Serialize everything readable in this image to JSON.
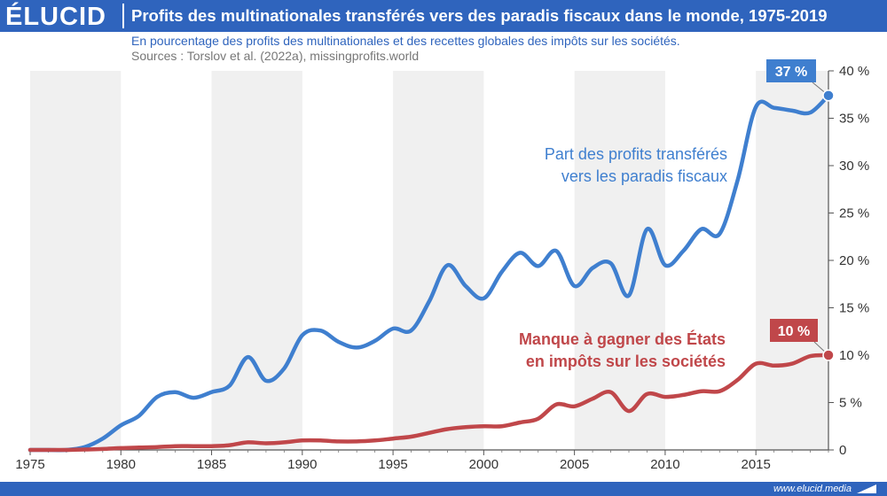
{
  "header": {
    "logo": "ÉLUCID",
    "title": "Profits des multinationales transférés vers des paradis fiscaux dans le monde, 1975-2019"
  },
  "subtitle": "En pourcentage des profits des multinationales et des recettes globales des impôts sur les sociétés.",
  "source": "Sources : Torslov et al. (2022a), missingprofits.world",
  "footer": {
    "url": "www.elucid.media"
  },
  "colors": {
    "brand": "#2f64bd",
    "series_blue": "#3f7fcf",
    "series_red": "#c0474a",
    "band": "#f0f0f0"
  },
  "chart_data": {
    "type": "line",
    "xlim": [
      1975,
      2019
    ],
    "ylim": [
      0,
      40
    ],
    "x_ticks": [
      1975,
      1980,
      1985,
      1990,
      1995,
      2000,
      2005,
      2010,
      2015
    ],
    "x_tick_labels": [
      "1975",
      "1980",
      "1985",
      "1990",
      "1995",
      "2000",
      "2005",
      "2010",
      "2015"
    ],
    "y_ticks": [
      0,
      5,
      10,
      15,
      20,
      25,
      30,
      35,
      40
    ],
    "y_tick_labels": [
      "0",
      "5 %",
      "10 %",
      "15 %",
      "20 %",
      "25 %",
      "30 %",
      "35 %",
      "40 %"
    ],
    "y_axis_side": "right",
    "grid": false,
    "alternating_year_bands": true,
    "series": [
      {
        "name": "Part des profits transférés vers les paradis fiscaux",
        "label_lines": [
          "Part des profits transférés",
          "vers les paradis fiscaux"
        ],
        "color": "#3f7fcf",
        "end_label": "37 %",
        "x": [
          1975,
          1976,
          1977,
          1978,
          1979,
          1980,
          1981,
          1982,
          1983,
          1984,
          1985,
          1986,
          1987,
          1988,
          1989,
          1990,
          1991,
          1992,
          1993,
          1994,
          1995,
          1996,
          1997,
          1998,
          1999,
          2000,
          2001,
          2002,
          2003,
          2004,
          2005,
          2006,
          2007,
          2008,
          2009,
          2010,
          2011,
          2012,
          2013,
          2014,
          2015,
          2016,
          2017,
          2018,
          2019
        ],
        "values": [
          0,
          0,
          0,
          0.3,
          1.2,
          2.6,
          3.6,
          5.6,
          6.1,
          5.5,
          6.1,
          6.8,
          9.8,
          7.3,
          8.6,
          12.1,
          12.6,
          11.4,
          10.8,
          11.5,
          12.8,
          12.6,
          15.7,
          19.5,
          17.3,
          16,
          18.8,
          20.8,
          19.4,
          21,
          17.3,
          19.2,
          19.7,
          16.3,
          23.3,
          19.5,
          21,
          23.3,
          22.8,
          28.5,
          36.2,
          36.1,
          35.8,
          35.6,
          37.4
        ]
      },
      {
        "name": "Manque à gagner des États en impôts sur les sociétés",
        "label_lines": [
          "Manque à gagner des États",
          "en impôts sur les sociétés"
        ],
        "color": "#c0474a",
        "end_label": "10 %",
        "x": [
          1975,
          1976,
          1977,
          1978,
          1979,
          1980,
          1981,
          1982,
          1983,
          1984,
          1985,
          1986,
          1987,
          1988,
          1989,
          1990,
          1991,
          1992,
          1993,
          1994,
          1995,
          1996,
          1997,
          1998,
          1999,
          2000,
          2001,
          2002,
          2003,
          2004,
          2005,
          2006,
          2007,
          2008,
          2009,
          2010,
          2011,
          2012,
          2013,
          2014,
          2015,
          2016,
          2017,
          2018,
          2019
        ],
        "values": [
          0,
          0,
          0,
          0.05,
          0.1,
          0.2,
          0.25,
          0.3,
          0.4,
          0.4,
          0.4,
          0.5,
          0.8,
          0.7,
          0.8,
          1,
          1,
          0.9,
          0.9,
          1,
          1.2,
          1.4,
          1.8,
          2.2,
          2.4,
          2.5,
          2.5,
          2.9,
          3.3,
          4.8,
          4.6,
          5.4,
          6.1,
          4.1,
          5.9,
          5.6,
          5.8,
          6.2,
          6.2,
          7.4,
          9.1,
          8.9,
          9.1,
          9.9,
          10
        ]
      }
    ]
  }
}
